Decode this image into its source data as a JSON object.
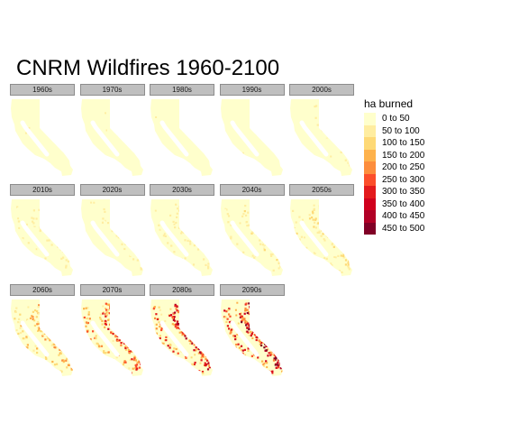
{
  "title": "CNRM Wildfires 1960-2100",
  "legend": {
    "title": "ha burned",
    "items": [
      {
        "label": "0 to 50",
        "color": "#FFFFCC"
      },
      {
        "label": "50 to 100",
        "color": "#FFEDA0"
      },
      {
        "label": "100 to 150",
        "color": "#FED976"
      },
      {
        "label": "150 to 200",
        "color": "#FEB24C"
      },
      {
        "label": "200 to 250",
        "color": "#FD8D3C"
      },
      {
        "label": "250 to 300",
        "color": "#FC4E2A"
      },
      {
        "label": "300 to 350",
        "color": "#E31A1C"
      },
      {
        "label": "350 to 400",
        "color": "#D0001C"
      },
      {
        "label": "400 to 450",
        "color": "#B10026"
      },
      {
        "label": "450 to 500",
        "color": "#800026"
      }
    ]
  },
  "panels": [
    {
      "label": "1960s",
      "intensity": 0.05
    },
    {
      "label": "1970s",
      "intensity": 0.05
    },
    {
      "label": "1980s",
      "intensity": 0.07
    },
    {
      "label": "1990s",
      "intensity": 0.07
    },
    {
      "label": "2000s",
      "intensity": 0.1
    },
    {
      "label": "2010s",
      "intensity": 0.15
    },
    {
      "label": "2020s",
      "intensity": 0.12
    },
    {
      "label": "2030s",
      "intensity": 0.18
    },
    {
      "label": "2040s",
      "intensity": 0.2
    },
    {
      "label": "2050s",
      "intensity": 0.25
    },
    {
      "label": "2060s",
      "intensity": 0.45
    },
    {
      "label": "2070s",
      "intensity": 0.65
    },
    {
      "label": "2080s",
      "intensity": 0.85
    },
    {
      "label": "2090s",
      "intensity": 0.95
    }
  ]
}
